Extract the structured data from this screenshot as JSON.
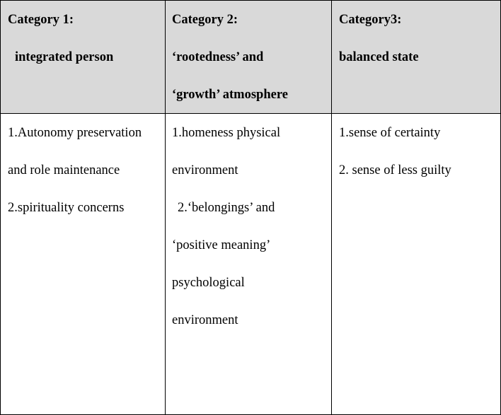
{
  "table": {
    "headers": [
      {
        "title": "Category 1:",
        "subtitle": "integrated person",
        "subtitle_line2": ""
      },
      {
        "title": "Category 2:",
        "subtitle_part1": "‘rootedness’",
        "subtitle_part2": "and",
        "subtitle_line2": "‘growth’ atmosphere"
      },
      {
        "title": "Category3:",
        "subtitle": "balanced state",
        "subtitle_line2": ""
      }
    ],
    "rows": {
      "col1": [
        {
          "part1": "1.Autonomy",
          "part2": "preservation"
        },
        {
          "text": "and role maintenance"
        },
        {
          "text": "2.spirituality concerns"
        }
      ],
      "col2": [
        {
          "part1": "1.homeness",
          "part2": "physical"
        },
        {
          "text": "environment"
        },
        {
          "part1": "2.‘belongings’",
          "part2": "and"
        },
        {
          "part1": "‘positive",
          "part2": "meaning’"
        },
        {
          "text": "psychological"
        },
        {
          "text": "environment"
        }
      ],
      "col3": [
        {
          "text": "1.sense of certainty"
        },
        {
          "text": "2. sense of less guilty"
        }
      ]
    }
  }
}
